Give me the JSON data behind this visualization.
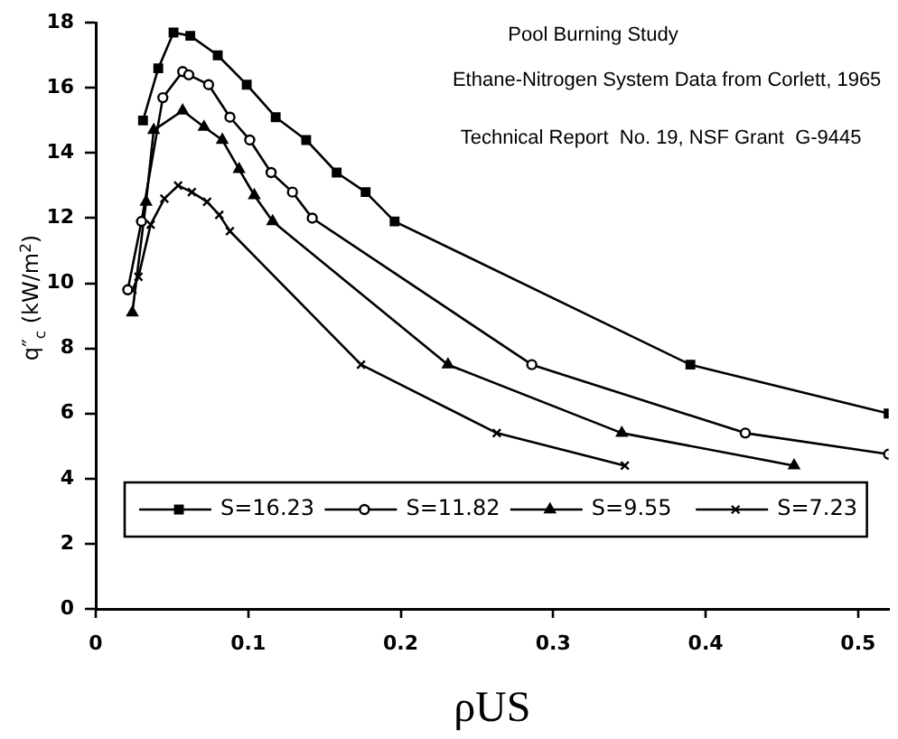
{
  "chart_data": {
    "type": "line",
    "xlabel": "ρUS",
    "ylabel": "q″$_{c}$ (kW/m$^{2}$)",
    "annotations": [
      "Pool Burning Study",
      "Ethane-Nitrogen System Data from Corlett, 1965",
      "Technical Report  No. 19, NSF Grant  G-9445"
    ],
    "xlim": [
      0,
      0.52
    ],
    "xticks": [
      0,
      0.1,
      0.2,
      0.3,
      0.4,
      0.5
    ],
    "ylim": [
      0,
      18
    ],
    "yticks": [
      0,
      2,
      4,
      6,
      8,
      10,
      12,
      14,
      16,
      18
    ],
    "grid": false,
    "legend": "bottom",
    "line_style": "solid",
    "series": [
      {
        "name": "S=16.23",
        "color": "#000000",
        "marker": "square",
        "x": [
          0.031,
          0.041,
          0.051,
          0.062,
          0.08,
          0.099,
          0.118,
          0.138,
          0.158,
          0.177,
          0.196,
          0.39,
          0.52
        ],
        "values": [
          15.0,
          16.6,
          17.7,
          17.6,
          17.0,
          16.1,
          15.1,
          14.4,
          13.4,
          12.8,
          11.9,
          7.5,
          6.0
        ]
      },
      {
        "name": "S=11.82",
        "color": "#000000",
        "marker": "circle",
        "x": [
          0.021,
          0.03,
          0.044,
          0.057,
          0.061,
          0.074,
          0.088,
          0.101,
          0.115,
          0.129,
          0.142,
          0.286,
          0.426,
          0.52
        ],
        "values": [
          9.8,
          11.9,
          15.7,
          16.5,
          16.4,
          16.1,
          15.1,
          14.4,
          13.4,
          12.8,
          12.0,
          7.5,
          5.4,
          4.75
        ]
      },
      {
        "name": "S=9.55",
        "color": "#000000",
        "marker": "triangle",
        "x": [
          0.024,
          0.033,
          0.038,
          0.057,
          0.071,
          0.083,
          0.094,
          0.104,
          0.116,
          0.231,
          0.345,
          0.458
        ],
        "values": [
          9.1,
          12.5,
          14.7,
          15.3,
          14.8,
          14.4,
          13.5,
          12.7,
          11.9,
          7.5,
          5.4,
          4.4
        ]
      },
      {
        "name": "S=7.23",
        "color": "#000000",
        "marker": "cross",
        "x": [
          0.024,
          0.028,
          0.036,
          0.045,
          0.054,
          0.063,
          0.073,
          0.081,
          0.088,
          0.174,
          0.263,
          0.347
        ],
        "values": [
          9.8,
          10.2,
          11.8,
          12.6,
          13.0,
          12.8,
          12.5,
          12.1,
          11.6,
          7.5,
          5.4,
          4.4
        ]
      }
    ]
  }
}
